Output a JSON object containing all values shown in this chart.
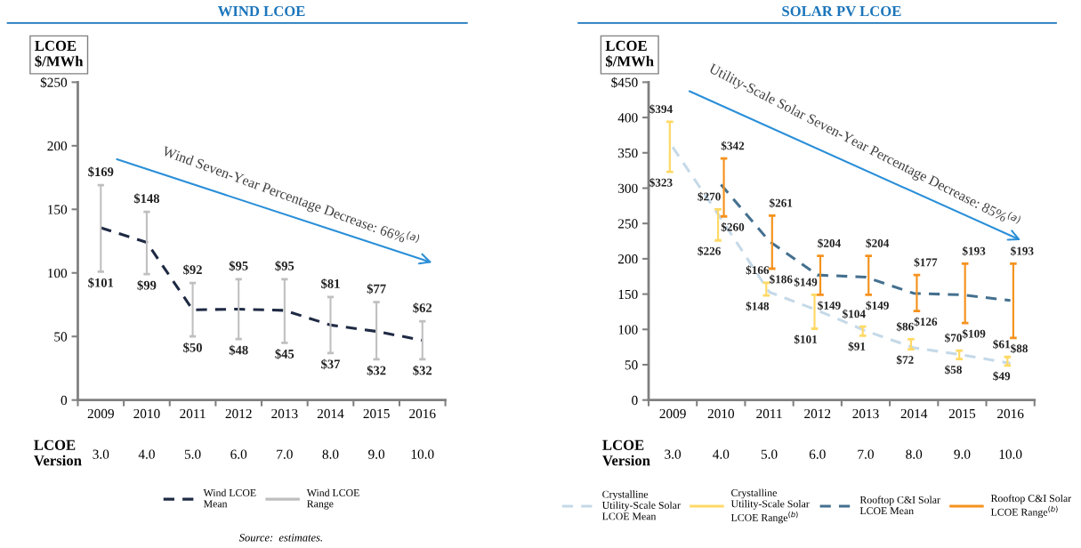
{
  "chart_data": [
    {
      "type": "line",
      "title": "WIND LCOE",
      "ylabel": "LCOE\n$/MWh",
      "categories": [
        "2009",
        "2010",
        "2011",
        "2012",
        "2013",
        "2014",
        "2015",
        "2016"
      ],
      "series": [
        {
          "name": "Wind LCOE\nMean",
          "color": "#1f2a44",
          "line_style": "dashed",
          "values": [
            135.5,
            124,
            71,
            71.5,
            70.5,
            59,
            54,
            47
          ]
        },
        {
          "name": "Wind LCOE\nRange",
          "type": "bar",
          "color": "#bfbfbf",
          "base": [
            101,
            99,
            50,
            48,
            45,
            37,
            32,
            32
          ],
          "values": [
            68,
            49,
            42,
            47,
            50,
            44,
            45,
            30
          ]
        }
      ],
      "ylim": [
        0,
        250
      ],
      "yticks": [
        0,
        50,
        100,
        150,
        200,
        {
          "value": 250,
          "label": "$250"
        }
      ],
      "grid": false,
      "legend": "bottom",
      "annotations": [
        "Wind Seven-Year Percentage Decrease: 66%$^{(a)}$",
        "LCOE\nVersion",
        "3.0",
        "4.0",
        "5.0",
        "6.0",
        "7.0",
        "8.0",
        "9.0",
        "10.0",
        "Source:  estimates.",
        {
          "text": "$169",
          "x": "2009",
          "y": 169
        },
        {
          "text": "$101",
          "x": "2009",
          "y": 101
        },
        {
          "text": "$148",
          "x": "2010",
          "y": 148
        },
        {
          "text": "$99",
          "x": "2010",
          "y": 99
        },
        {
          "text": "$92",
          "x": "2011",
          "y": 92
        },
        {
          "text": "$50",
          "x": "2011",
          "y": 50
        },
        {
          "text": "$95",
          "x": "2012",
          "y": 95
        },
        {
          "text": "$48",
          "x": "2012",
          "y": 48
        },
        {
          "text": "$95",
          "x": "2013",
          "y": 95
        },
        {
          "text": "$45",
          "x": "2013",
          "y": 45
        },
        {
          "text": "$81",
          "x": "2014",
          "y": 81
        },
        {
          "text": "$37",
          "x": "2014",
          "y": 37
        },
        {
          "text": "$77",
          "x": "2015",
          "y": 77
        },
        {
          "text": "$32",
          "x": "2015",
          "y": 32
        },
        {
          "text": "$62",
          "x": "2016",
          "y": 62
        },
        {
          "text": "$32",
          "x": "2016",
          "y": 32
        }
      ]
    },
    {
      "type": "line",
      "title": "SOLAR PV LCOE",
      "ylabel": "LCOE\n$/MWh",
      "categories": [
        "2009",
        "2010",
        "2011",
        "2012",
        "2013",
        "2014",
        "2015",
        "2016"
      ],
      "series": [
        {
          "name": "Crystalline\nUtility-Scale Solar\nLCOE Mean",
          "color": "#c5d9e8",
          "line_style": "dashed",
          "values": [
            358,
            257,
            153,
            127,
            98,
            74,
            64,
            52
          ]
        },
        {
          "name": "Crystalline\nUtility-Scale Solar\nLCOE Range$^{(b)}$",
          "type": "bar",
          "color": "#ffd966",
          "base": [
            323,
            226,
            148,
            101,
            91,
            72,
            58,
            49
          ],
          "values": [
            71,
            44,
            18,
            48,
            13,
            14,
            12,
            12
          ]
        },
        {
          "name": "Rooftop C&I Solar\nLCOE Mean",
          "color": "#44708f",
          "line_style": "dashed",
          "values": [
            null,
            305,
            225,
            177,
            174,
            151,
            149,
            141
          ]
        },
        {
          "name": "Rooftop C&I Solar\nLCOE Range$^{(b)}$",
          "type": "bar",
          "color": "#f5921e",
          "base": [
            null,
            260,
            186,
            149,
            149,
            126,
            109,
            88
          ],
          "values": [
            null,
            82,
            75,
            55,
            55,
            51,
            84,
            105
          ]
        }
      ],
      "ylim": [
        0,
        450
      ],
      "yticks": [
        0,
        50,
        100,
        150,
        200,
        250,
        300,
        350,
        400,
        {
          "value": 450,
          "label": "$450"
        }
      ],
      "grid": false,
      "legend": "bottom",
      "annotations": [
        "Utility-Scale Solar Seven-Year Percentage Decrease: 85%$^{(a)}$",
        "LCOE\nVersion",
        "3.0",
        "4.0",
        "5.0",
        "6.0",
        "7.0",
        "8.0",
        "9.0",
        "10.0",
        {
          "text": "$394",
          "x": "2009",
          "y": 394
        },
        {
          "text": "$323",
          "x": "2009",
          "y": 323
        },
        {
          "text": "$270",
          "x": "2010",
          "y": 270
        },
        {
          "text": "$226",
          "x": "2010",
          "y": 226
        },
        {
          "text": "$342",
          "x": "2010",
          "y": 342
        },
        {
          "text": "$260",
          "x": "2010",
          "y": 260
        },
        {
          "text": "$166",
          "x": "2011",
          "y": 166
        },
        {
          "text": "$148",
          "x": "2011",
          "y": 148
        },
        {
          "text": "$261",
          "x": "2011",
          "y": 261
        },
        {
          "text": "$186",
          "x": "2011",
          "y": 186
        },
        {
          "text": "$149",
          "x": "2012",
          "y": 149
        },
        {
          "text": "$101",
          "x": "2012",
          "y": 101
        },
        {
          "text": "$204",
          "x": "2012",
          "y": 204
        },
        {
          "text": "$149",
          "x": "2012",
          "y": 149
        },
        {
          "text": "$104",
          "x": "2013",
          "y": 104
        },
        {
          "text": "$91",
          "x": "2013",
          "y": 91
        },
        {
          "text": "$204",
          "x": "2013",
          "y": 204
        },
        {
          "text": "$149",
          "x": "2013",
          "y": 149
        },
        {
          "text": "$86",
          "x": "2014",
          "y": 86
        },
        {
          "text": "$72",
          "x": "2014",
          "y": 72
        },
        {
          "text": "$177",
          "x": "2014",
          "y": 177
        },
        {
          "text": "$126",
          "x": "2014",
          "y": 126
        },
        {
          "text": "$70",
          "x": "2015",
          "y": 70
        },
        {
          "text": "$58",
          "x": "2015",
          "y": 58
        },
        {
          "text": "$193",
          "x": "2015",
          "y": 193
        },
        {
          "text": "$109",
          "x": "2015",
          "y": 109
        },
        {
          "text": "$61",
          "x": "2016",
          "y": 61
        },
        {
          "text": "$49",
          "x": "2016",
          "y": 49
        },
        {
          "text": "$193",
          "x": "2016",
          "y": 193
        },
        {
          "text": "$88",
          "x": "2016",
          "y": 88
        }
      ]
    }
  ]
}
